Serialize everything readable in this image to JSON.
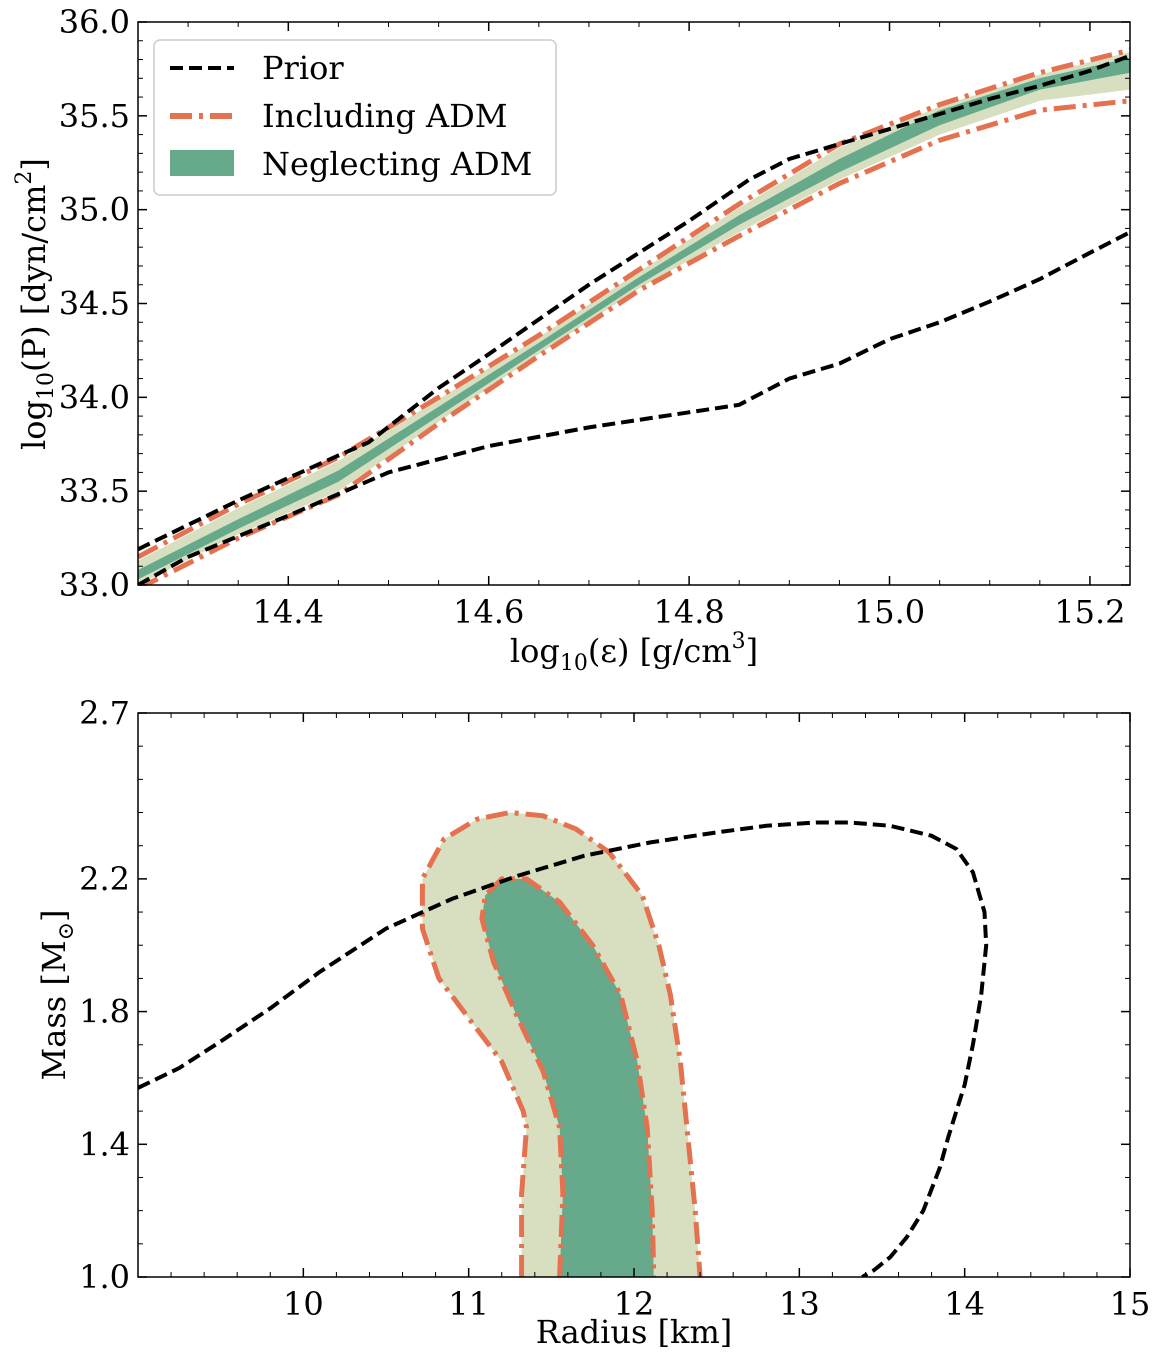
{
  "colors": {
    "prior": "#000000",
    "including_adm": "#e4714f",
    "neglecting_adm": "#66a98b",
    "outer_band": "#d8dfc0"
  },
  "chart_data": [
    {
      "type": "area",
      "xlabel": "log₁₀(ε) [g/cm³]",
      "xlabel_parts": {
        "func": "log",
        "sub": "10",
        "arg": "(ε) [g/cm",
        "sup": "3",
        "end": "]"
      },
      "ylabel": "log₁₀(P) [dyn/cm²]",
      "ylabel_parts": {
        "func": "log",
        "sub": "10",
        "arg": "(P) [dyn/cm",
        "sup": "2",
        "end": "]"
      },
      "xlim": [
        14.25,
        15.24
      ],
      "ylim": [
        33.0,
        36.0
      ],
      "xticks": [
        14.4,
        14.6,
        14.8,
        15.0,
        15.2
      ],
      "xtick_labels": [
        "14.4",
        "14.6",
        "14.8",
        "15.0",
        "15.2"
      ],
      "yticks": [
        33.0,
        33.5,
        34.0,
        34.5,
        35.0,
        35.5,
        36.0
      ],
      "ytick_labels": [
        "33.0",
        "33.5",
        "34.0",
        "34.5",
        "35.0",
        "35.5",
        "36.0"
      ],
      "legend": {
        "location": "upper-left",
        "entries": [
          {
            "label": "Prior",
            "style": "dashed"
          },
          {
            "label": "Including ADM",
            "style": "dashdot"
          },
          {
            "label": "Neglecting ADM",
            "style": "filled"
          }
        ]
      },
      "series": [
        {
          "name": "Prior upper",
          "style": "dashed",
          "x": [
            14.25,
            14.3,
            14.35,
            14.4,
            14.45,
            14.48,
            14.55,
            14.6,
            14.7,
            14.8,
            14.86,
            14.9,
            14.95,
            15.0,
            15.05,
            15.1,
            15.15,
            15.2,
            15.24
          ],
          "y": [
            33.19,
            33.32,
            33.45,
            33.57,
            33.69,
            33.76,
            34.05,
            34.23,
            34.6,
            34.94,
            35.16,
            35.27,
            35.35,
            35.43,
            35.51,
            35.59,
            35.66,
            35.74,
            35.82
          ]
        },
        {
          "name": "Prior lower",
          "style": "dashed",
          "x": [
            14.25,
            14.3,
            14.4,
            14.5,
            14.6,
            14.7,
            14.8,
            14.85,
            14.9,
            14.95,
            15.0,
            15.05,
            15.1,
            15.15,
            15.2,
            15.24
          ],
          "y": [
            33.0,
            33.15,
            33.37,
            33.6,
            33.74,
            33.84,
            33.92,
            33.96,
            34.1,
            34.18,
            34.31,
            34.4,
            34.51,
            34.63,
            34.77,
            34.88
          ]
        },
        {
          "name": "Including ADM upper",
          "style": "dashdot",
          "x": [
            14.25,
            14.35,
            14.45,
            14.55,
            14.65,
            14.75,
            14.85,
            14.95,
            15.05,
            15.15,
            15.24
          ],
          "y": [
            33.15,
            33.43,
            33.68,
            34.0,
            34.33,
            34.68,
            35.03,
            35.35,
            35.56,
            35.73,
            35.85
          ]
        },
        {
          "name": "Including ADM lower",
          "style": "dashdot",
          "x": [
            14.25,
            14.35,
            14.45,
            14.55,
            14.65,
            14.75,
            14.85,
            14.95,
            15.05,
            15.15,
            15.24
          ],
          "y": [
            32.98,
            33.25,
            33.48,
            33.86,
            34.22,
            34.57,
            34.86,
            35.14,
            35.37,
            35.53,
            35.58
          ]
        },
        {
          "name": "Outer band upper",
          "style": "band",
          "x": [
            14.25,
            14.35,
            14.45,
            14.55,
            14.65,
            14.75,
            14.85,
            14.95,
            15.05,
            15.15,
            15.24
          ],
          "y": [
            33.13,
            33.41,
            33.66,
            33.99,
            34.32,
            34.67,
            35.01,
            35.33,
            35.55,
            35.72,
            35.84
          ]
        },
        {
          "name": "Outer band lower",
          "style": "band",
          "x": [
            14.25,
            14.35,
            14.45,
            14.55,
            14.65,
            14.75,
            14.85,
            14.95,
            15.05,
            15.15,
            15.24
          ],
          "y": [
            33.0,
            33.27,
            33.5,
            33.87,
            34.23,
            34.58,
            34.88,
            35.16,
            35.4,
            35.58,
            35.64
          ]
        },
        {
          "name": "Neglecting ADM upper",
          "style": "filled",
          "x": [
            14.25,
            14.35,
            14.45,
            14.55,
            14.65,
            14.75,
            14.85,
            14.95,
            15.05,
            15.15,
            15.24
          ],
          "y": [
            33.08,
            33.35,
            33.61,
            33.95,
            34.29,
            34.64,
            34.97,
            35.27,
            35.53,
            35.7,
            35.81
          ]
        },
        {
          "name": "Neglecting ADM lower",
          "style": "filled",
          "x": [
            14.25,
            14.35,
            14.45,
            14.55,
            14.65,
            14.75,
            14.85,
            14.95,
            15.05,
            15.15,
            15.24
          ],
          "y": [
            33.03,
            33.3,
            33.55,
            33.9,
            34.25,
            34.6,
            34.92,
            35.2,
            35.45,
            35.64,
            35.73
          ]
        }
      ]
    },
    {
      "type": "area",
      "xlabel": "Radius [km]",
      "ylabel": "Mass [M⊙]",
      "ylabel_parts": {
        "base": "Mass [M",
        "sub": "⊙",
        "end": "]"
      },
      "xlim": [
        9.0,
        15.0
      ],
      "ylim": [
        1.0,
        2.7
      ],
      "xticks": [
        10,
        11,
        12,
        13,
        14,
        15
      ],
      "xtick_labels": [
        "10",
        "11",
        "12",
        "13",
        "14",
        "15"
      ],
      "yticks": [
        1.0,
        1.4,
        1.8,
        2.2,
        2.7
      ],
      "ytick_labels": [
        "1.0",
        "1.4",
        "1.8",
        "2.2",
        "2.7"
      ],
      "series": [
        {
          "name": "Prior",
          "style": "dashed",
          "x": [
            9.0,
            9.25,
            9.5,
            9.8,
            10.1,
            10.5,
            10.9,
            11.3,
            11.7,
            12.1,
            12.5,
            12.8,
            13.1,
            13.3,
            13.55,
            13.8,
            13.95,
            14.05,
            14.12,
            14.13,
            14.1,
            14.05,
            14.0,
            13.95,
            13.9,
            13.85,
            13.75,
            13.65,
            13.55,
            13.45,
            13.38
          ],
          "y": [
            1.57,
            1.63,
            1.71,
            1.81,
            1.92,
            2.05,
            2.14,
            2.21,
            2.27,
            2.31,
            2.34,
            2.36,
            2.37,
            2.37,
            2.36,
            2.33,
            2.29,
            2.22,
            2.1,
            2.0,
            1.85,
            1.7,
            1.58,
            1.5,
            1.42,
            1.33,
            1.2,
            1.12,
            1.06,
            1.02,
            1.0
          ]
        },
        {
          "name": "Including ADM outer",
          "style": "dashdot",
          "x": [
            11.32,
            11.32,
            11.35,
            11.33,
            11.2,
            11.0,
            10.82,
            10.72,
            10.72,
            10.85,
            11.05,
            11.25,
            11.45,
            11.65,
            11.85,
            12.05,
            12.15,
            12.22,
            12.28,
            12.33,
            12.37,
            12.4
          ],
          "y": [
            1.0,
            1.25,
            1.45,
            1.5,
            1.65,
            1.78,
            1.9,
            2.05,
            2.2,
            2.32,
            2.38,
            2.4,
            2.39,
            2.35,
            2.28,
            2.15,
            2.0,
            1.85,
            1.65,
            1.4,
            1.2,
            1.0
          ]
        },
        {
          "name": "Neglecting ADM",
          "style": "filled",
          "x": [
            11.55,
            11.57,
            11.55,
            11.45,
            11.28,
            11.15,
            11.08,
            11.1,
            11.2,
            11.35,
            11.55,
            11.75,
            11.92,
            12.02,
            12.08,
            12.11,
            12.12
          ],
          "y": [
            1.0,
            1.25,
            1.45,
            1.62,
            1.8,
            1.95,
            2.08,
            2.15,
            2.2,
            2.2,
            2.13,
            2.0,
            1.85,
            1.65,
            1.45,
            1.2,
            1.0
          ]
        }
      ]
    }
  ]
}
